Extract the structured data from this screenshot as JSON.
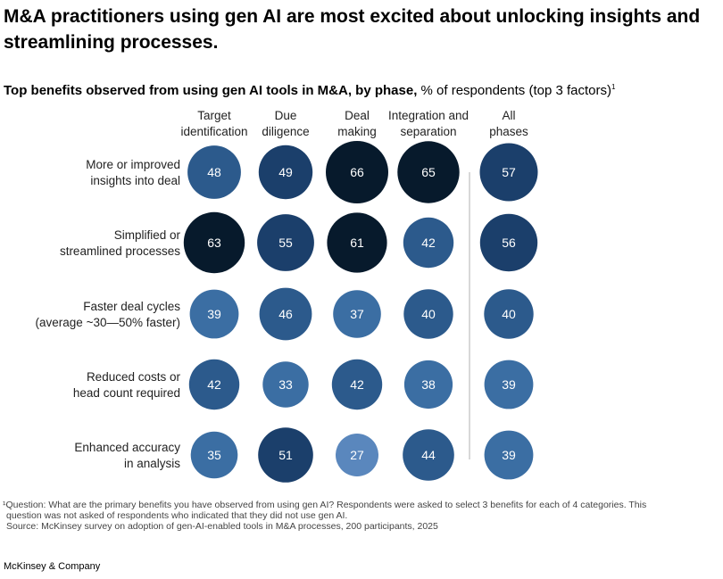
{
  "headline": "M&A practitioners using gen AI are most excited about unlocking insights and streamlining processes.",
  "subtitle": {
    "bold": "Top benefits observed from using gen AI tools in M&A, by phase,",
    "normal": " % of respondents (top 3 factors)",
    "sup": "1"
  },
  "chart_data": {
    "type": "bubble-matrix",
    "columns": [
      [
        "Target",
        "identification"
      ],
      [
        "Due",
        "diligence"
      ],
      [
        "Deal",
        "making"
      ],
      [
        "Integration and",
        "separation"
      ],
      [
        "All",
        "phases"
      ]
    ],
    "rows": [
      [
        "More or improved",
        "insights into deal"
      ],
      [
        "Simplified or",
        "streamlined processes"
      ],
      [
        "Faster deal cycles",
        "(average ~30—50% faster)"
      ],
      [
        "Reduced costs or",
        "head count required"
      ],
      [
        "Enhanced accuracy",
        "in analysis"
      ]
    ],
    "values": [
      [
        48,
        49,
        66,
        65,
        57
      ],
      [
        63,
        55,
        61,
        42,
        56
      ],
      [
        39,
        46,
        37,
        40,
        40
      ],
      [
        42,
        33,
        42,
        38,
        39
      ],
      [
        35,
        51,
        27,
        44,
        39
      ]
    ],
    "value_range": [
      27,
      66
    ],
    "colors": {
      "highest": "#071a2c",
      "high": "#1b3f6b",
      "mid": "#2c5a8c",
      "low": "#3b6ea3",
      "lowest": "#5a87bd",
      "divider": "#cccccc",
      "value_text": "#ffffff"
    }
  },
  "footnotes": {
    "note": "¹Question: What are the primary benefits you have observed from using gen AI? Respondents were asked to select 3 benefits for each of 4 categories. This",
    "note_cont": "question was not asked of respondents who indicated that they did not use gen AI.",
    "source": "Source: McKinsey survey on adoption of gen-AI-enabled tools in M&A processes, 200 participants, 2025"
  },
  "brand": "McKinsey & Company"
}
